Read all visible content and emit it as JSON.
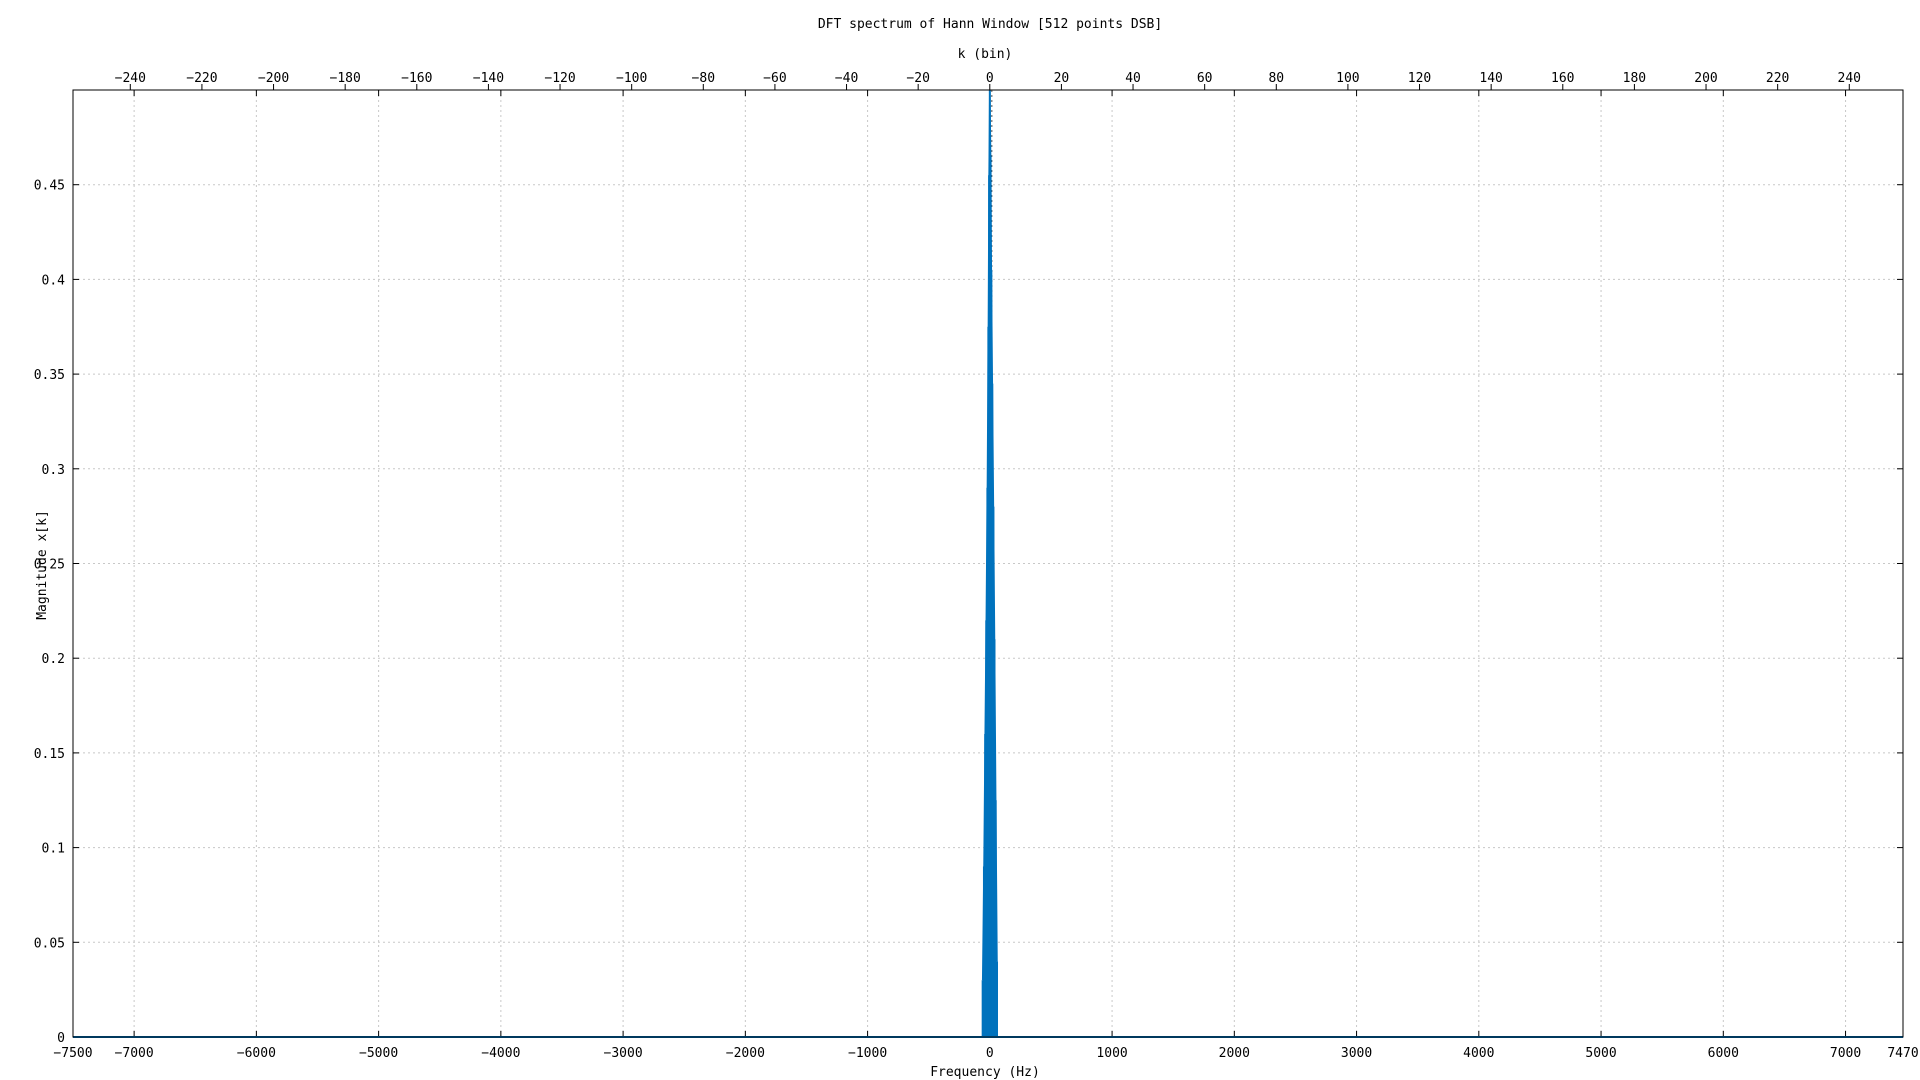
{
  "chart_data": {
    "type": "line",
    "title": "DFT spectrum of Hann Window [512 points DSB]",
    "xlabel": "Frequency (Hz)",
    "ylabel": "Magnitude x[k]",
    "x2label": "k (bin)",
    "xlim": [
      -7500,
      7470
    ],
    "ylim": [
      0,
      0.5
    ],
    "x2lim": [
      -256,
      255
    ],
    "grid": true,
    "xticks": [
      -7500,
      -7000,
      -6000,
      -5000,
      -4000,
      -3000,
      -2000,
      -1000,
      0,
      1000,
      2000,
      3000,
      4000,
      5000,
      6000,
      7000,
      7470
    ],
    "xtick_labels": [
      "−7500",
      "−7000",
      "−6000",
      "−5000",
      "−4000",
      "−3000",
      "−2000",
      "−1000",
      "0",
      "1000",
      "2000",
      "3000",
      "4000",
      "5000",
      "6000",
      "7000",
      "7470"
    ],
    "yticks": [
      0,
      0.05,
      0.1,
      0.15,
      0.2,
      0.25,
      0.3,
      0.35,
      0.4,
      0.45
    ],
    "ytick_labels": [
      "0",
      "0.05",
      "0.1",
      "0.15",
      "0.2",
      "0.25",
      "0.3",
      "0.35",
      "0.4",
      "0.45"
    ],
    "x2ticks": [
      -240,
      -220,
      -200,
      -180,
      -160,
      -140,
      -120,
      -100,
      -80,
      -60,
      -40,
      -20,
      0,
      20,
      40,
      60,
      80,
      100,
      120,
      140,
      160,
      180,
      200,
      220,
      240
    ],
    "x2tick_labels": [
      "−240",
      "−220",
      "−200",
      "−180",
      "−160",
      "−140",
      "−120",
      "−100",
      "−80",
      "−60",
      "−40",
      "−20",
      "0",
      "20",
      "40",
      "60",
      "80",
      "100",
      "120",
      "140",
      "160",
      "180",
      "200",
      "220",
      "240"
    ],
    "series": [
      {
        "color": "#0072bd",
        "x": [
          -7500,
          -58.6,
          -58.6,
          -29.3,
          -29.3,
          0,
          0,
          29.3,
          29.3,
          58.6,
          58.6,
          7470
        ],
        "y": [
          0,
          0,
          0.0,
          0.0,
          0.25,
          0.25,
          0.5,
          0.5,
          0.25,
          0.25,
          0,
          0
        ]
      }
    ],
    "stems": [
      {
        "x": -58.6,
        "y": 0.03
      },
      {
        "x": -48,
        "y": 0.09
      },
      {
        "x": -38,
        "y": 0.16
      },
      {
        "x": -29.3,
        "y": 0.22
      },
      {
        "x": -20,
        "y": 0.29
      },
      {
        "x": -12,
        "y": 0.375
      },
      {
        "x": -6,
        "y": 0.455
      },
      {
        "x": 0,
        "y": 0.5
      },
      {
        "x": 6,
        "y": 0.465
      },
      {
        "x": 12,
        "y": 0.405
      },
      {
        "x": 20,
        "y": 0.345
      },
      {
        "x": 29.3,
        "y": 0.28
      },
      {
        "x": 38,
        "y": 0.21
      },
      {
        "x": 48,
        "y": 0.125
      },
      {
        "x": 58.6,
        "y": 0.04
      }
    ]
  }
}
